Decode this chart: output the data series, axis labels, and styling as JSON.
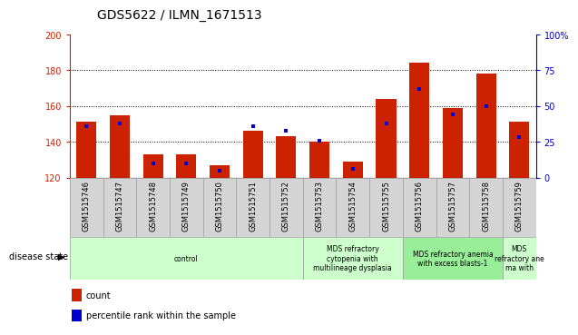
{
  "title": "GDS5622 / ILMN_1671513",
  "samples": [
    "GSM1515746",
    "GSM1515747",
    "GSM1515748",
    "GSM1515749",
    "GSM1515750",
    "GSM1515751",
    "GSM1515752",
    "GSM1515753",
    "GSM1515754",
    "GSM1515755",
    "GSM1515756",
    "GSM1515757",
    "GSM1515758",
    "GSM1515759"
  ],
  "counts": [
    151,
    155,
    133,
    133,
    127,
    146,
    143,
    140,
    129,
    164,
    184,
    159,
    178,
    151
  ],
  "percentile_ranks": [
    36,
    38,
    10,
    10,
    5,
    36,
    33,
    26,
    6,
    38,
    62,
    44,
    50,
    28
  ],
  "ymin": 120,
  "ymax": 200,
  "y_ticks": [
    120,
    140,
    160,
    180,
    200
  ],
  "y2min": 0,
  "y2max": 100,
  "y2_ticks": [
    0,
    25,
    50,
    75,
    100
  ],
  "y2_tick_labels": [
    "0",
    "25",
    "50",
    "75",
    "100%"
  ],
  "bar_color": "#cc2200",
  "marker_color": "#0000cc",
  "bar_width": 0.6,
  "groups": [
    {
      "label": "control",
      "start": 0,
      "end": 6,
      "color": "#ccffcc"
    },
    {
      "label": "MDS refractory\ncytopenia with\nmultilineage dysplasia",
      "start": 7,
      "end": 9,
      "color": "#ccffcc"
    },
    {
      "label": "MDS refractory anemia\nwith excess blasts-1",
      "start": 10,
      "end": 12,
      "color": "#99ee99"
    },
    {
      "label": "MDS\nrefractory ane\nma with",
      "start": 13,
      "end": 13,
      "color": "#ccffcc"
    }
  ],
  "legend_count_label": "count",
  "legend_pct_label": "percentile rank within the sample",
  "disease_state_label": "disease state",
  "sample_box_color": "#d4d4d4",
  "sample_box_edge": "#aaaaaa"
}
